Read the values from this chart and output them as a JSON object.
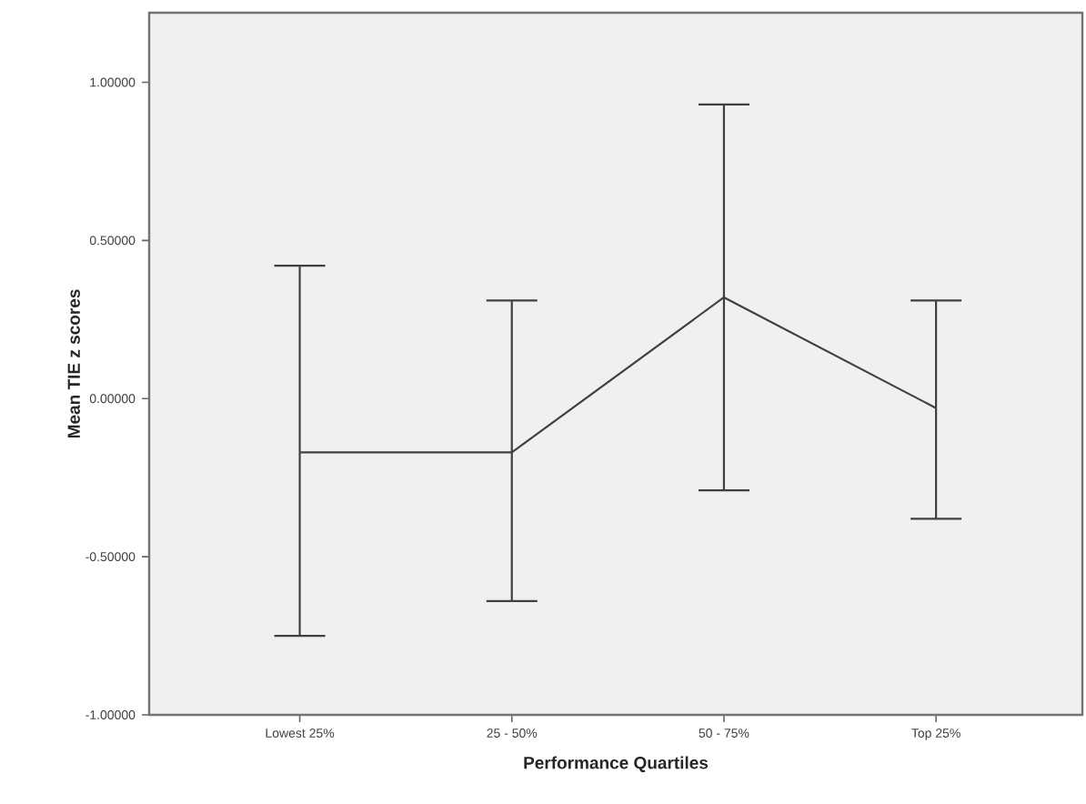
{
  "chart_data": {
    "type": "line",
    "xlabel": "Performance Quartiles",
    "ylabel": "Mean TIE z scores",
    "categories": [
      "Lowest 25%",
      "25 - 50%",
      "50 - 75%",
      "Top 25%"
    ],
    "series": [
      {
        "color": "#404040",
        "values": [
          -0.17,
          -0.17,
          0.32,
          -0.03
        ],
        "errors": [
          [
            -0.75,
            0.42
          ],
          [
            -0.64,
            0.31
          ],
          [
            -0.29,
            0.93
          ],
          [
            -0.38,
            0.31
          ]
        ]
      }
    ],
    "ylim": [
      -1.0,
      1.22
    ],
    "yticks": [
      {
        "value": -1.0,
        "label": "-1.00000"
      },
      {
        "value": -0.5,
        "label": "-0.50000"
      },
      {
        "value": 0.0,
        "label": "0.00000"
      },
      {
        "value": 0.5,
        "label": "0.50000"
      },
      {
        "value": 1.0,
        "label": "1.00000"
      }
    ],
    "marker": "none",
    "line_style": "solid"
  }
}
